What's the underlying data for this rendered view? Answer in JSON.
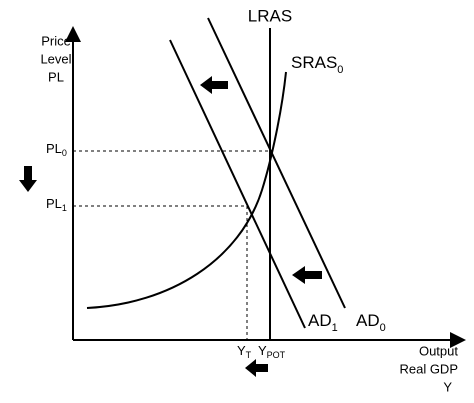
{
  "y_axis_label": [
    "Price",
    "Level",
    "PL"
  ],
  "x_axis_label": [
    "Output",
    "Real GDP",
    "Y"
  ],
  "curves": {
    "lras": "LRAS",
    "sras": {
      "main": "SRAS",
      "sub": "0"
    },
    "ad0": {
      "main": "AD",
      "sub": "0"
    },
    "ad1": {
      "main": "AD",
      "sub": "1"
    }
  },
  "price_levels": [
    {
      "main": "PL",
      "sub": "0"
    },
    {
      "main": "PL",
      "sub": "1"
    }
  ],
  "outputs": [
    {
      "main": "Y",
      "sub": "T"
    },
    {
      "main": "Y",
      "sub": "POT"
    }
  ]
}
